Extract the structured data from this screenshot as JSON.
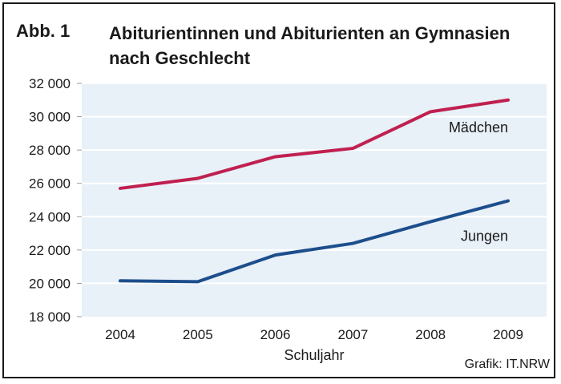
{
  "figure": {
    "label": "Abb. 1",
    "title": "Abiturientinnen und Abiturienten an Gymnasien nach Geschlecht",
    "credit": "Grafik: IT.NRW"
  },
  "colors": {
    "plot_background": "#e8f0f8",
    "gridline": "#ffffff",
    "series_maedchen": "#c0204f",
    "series_jungen": "#1c4e8c"
  },
  "chart_data": {
    "type": "line",
    "title": "Abiturientinnen und Abiturienten an Gymnasien nach Geschlecht",
    "xlabel": "Schuljahr",
    "ylabel": "",
    "x": [
      2004,
      2005,
      2006,
      2007,
      2008,
      2009
    ],
    "x_tick_labels": [
      "2004",
      "2005",
      "2006",
      "2007",
      "2008",
      "2009"
    ],
    "ylim": [
      18000,
      32000
    ],
    "y_ticks": [
      18000,
      20000,
      22000,
      24000,
      26000,
      28000,
      30000,
      32000
    ],
    "y_tick_labels": [
      "18 000",
      "20 000",
      "22 000",
      "24 000",
      "26 000",
      "28 000",
      "30 000",
      "32 000"
    ],
    "grid": true,
    "legend": "inline labels next to lines",
    "series": [
      {
        "name": "Mädchen",
        "color": "#c0204f",
        "values": [
          25700,
          26300,
          27600,
          28100,
          30300,
          31000
        ]
      },
      {
        "name": "Jungen",
        "color": "#1c4e8c",
        "values": [
          20150,
          20100,
          21700,
          22400,
          23700,
          24950
        ]
      }
    ]
  }
}
